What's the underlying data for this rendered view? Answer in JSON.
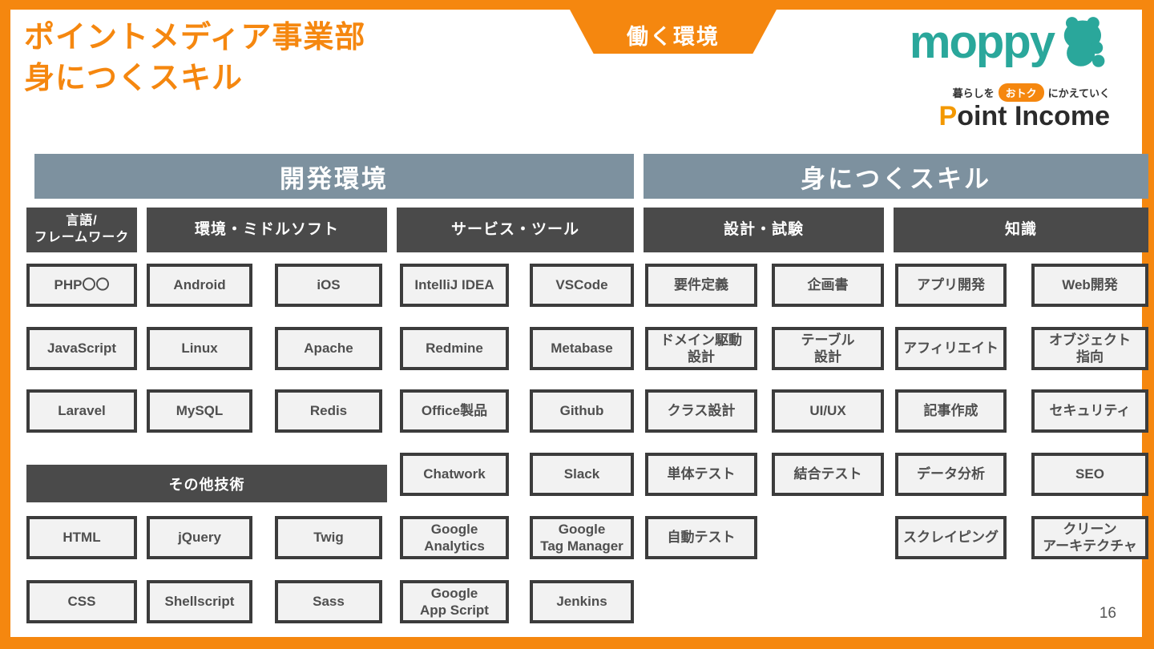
{
  "slide": {
    "title": "ポイントメディア事業部\n身につくスキル",
    "ribbon_label": "働く環境",
    "page_number": "16"
  },
  "logos": {
    "moppy_text": "moppy",
    "moppy_mascot_icon": "hamster-mascot-icon",
    "tagline_left": "暮らしを",
    "tagline_badge": "おトク",
    "tagline_right": "にかえていく",
    "point_income_initial": "P",
    "point_income_rest": "oint Income"
  },
  "colors": {
    "accent_orange": "#F5870F",
    "slate_header": "#7D919F",
    "dark_header": "#4A4A4A",
    "moppy_teal": "#2AA79B",
    "box_fill": "#F2F2F2",
    "box_border": "#3C3C3C"
  },
  "sections": {
    "dev_env_label": "開発環境",
    "skills_label": "身につくスキル"
  },
  "column_headers": [
    {
      "label": "言語/\nフレームワーク"
    },
    {
      "label": "環境・ミドルソフト"
    },
    {
      "label": "サービス・ツール"
    },
    {
      "label": "設計・試験"
    },
    {
      "label": "知識"
    }
  ],
  "other_tech_label": "その他技術",
  "boxes": [
    {
      "label": "PHP〇〇",
      "col": "A",
      "row": 1,
      "bold": true
    },
    {
      "label": "JavaScript",
      "col": "A",
      "row": 2
    },
    {
      "label": "Laravel",
      "col": "A",
      "row": 3,
      "bold": true
    },
    {
      "label": "Android",
      "col": "B1",
      "row": 1
    },
    {
      "label": "Linux",
      "col": "B1",
      "row": 2
    },
    {
      "label": "MySQL",
      "col": "B1",
      "row": 3,
      "bold": true
    },
    {
      "label": "iOS",
      "col": "B2",
      "row": 1
    },
    {
      "label": "Apache",
      "col": "B2",
      "row": 2
    },
    {
      "label": "Redis",
      "col": "B2",
      "row": 3
    },
    {
      "label": "IntelliJ IDEA",
      "col": "C1",
      "row": 1
    },
    {
      "label": "Redmine",
      "col": "C1",
      "row": 2
    },
    {
      "label": "Office製品",
      "col": "C1",
      "row": 3
    },
    {
      "label": "Chatwork",
      "col": "C1",
      "row": 4
    },
    {
      "label": "Google\nAnalytics",
      "col": "C1",
      "row": 5
    },
    {
      "label": "Google\nApp Script",
      "col": "C1",
      "row": 6
    },
    {
      "label": "VSCode",
      "col": "C2",
      "row": 1
    },
    {
      "label": "Metabase",
      "col": "C2",
      "row": 2
    },
    {
      "label": "Github",
      "col": "C2",
      "row": 3
    },
    {
      "label": "Slack",
      "col": "C2",
      "row": 4
    },
    {
      "label": "Google\nTag Manager",
      "col": "C2",
      "row": 5
    },
    {
      "label": "Jenkins",
      "col": "C2",
      "row": 6
    },
    {
      "label": "HTML",
      "col": "A",
      "row": 5
    },
    {
      "label": "jQuery",
      "col": "B1",
      "row": 5,
      "bold": true
    },
    {
      "label": "Twig",
      "col": "B2",
      "row": 5
    },
    {
      "label": "CSS",
      "col": "A",
      "row": 6
    },
    {
      "label": "Shellscript",
      "col": "B1",
      "row": 6
    },
    {
      "label": "Sass",
      "col": "B2",
      "row": 6
    },
    {
      "label": "要件定義",
      "col": "D1",
      "row": 1
    },
    {
      "label": "ドメイン駆動\n設計",
      "col": "D1",
      "row": 2
    },
    {
      "label": "クラス設計",
      "col": "D1",
      "row": 3
    },
    {
      "label": "単体テスト",
      "col": "D1",
      "row": 4
    },
    {
      "label": "自動テスト",
      "col": "D1",
      "row": 5
    },
    {
      "label": "企画書",
      "col": "D2",
      "row": 1
    },
    {
      "label": "テーブル\n設計",
      "col": "D2",
      "row": 2
    },
    {
      "label": "UI/UX",
      "col": "D2",
      "row": 3
    },
    {
      "label": "結合テスト",
      "col": "D2",
      "row": 4
    },
    {
      "label": "アプリ開発",
      "col": "E1",
      "row": 1
    },
    {
      "label": "アフィリエイト",
      "col": "E1",
      "row": 2
    },
    {
      "label": "記事作成",
      "col": "E1",
      "row": 3
    },
    {
      "label": "データ分析",
      "col": "E1",
      "row": 4
    },
    {
      "label": "スクレイピング",
      "col": "E1",
      "row": 5
    },
    {
      "label": "Web開発",
      "col": "E2",
      "row": 1
    },
    {
      "label": "オブジェクト\n指向",
      "col": "E2",
      "row": 2
    },
    {
      "label": "セキュリティ",
      "col": "E2",
      "row": 3
    },
    {
      "label": "SEO",
      "col": "E2",
      "row": 4
    },
    {
      "label": "クリーン\nアーキテクチャ",
      "col": "E2",
      "row": 5
    }
  ]
}
